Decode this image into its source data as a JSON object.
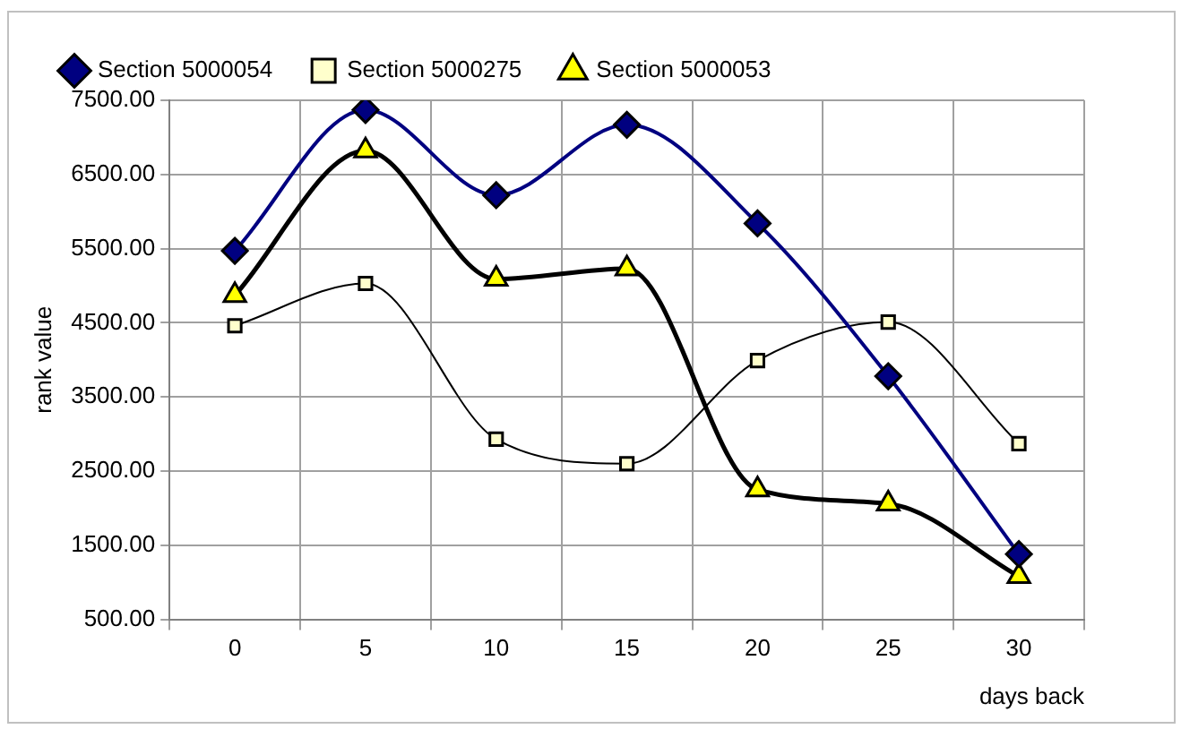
{
  "chart_data": {
    "type": "line",
    "xlabel": "days back",
    "ylabel": "rank value",
    "categories": [
      "0",
      "5",
      "10",
      "15",
      "20",
      "25",
      "30"
    ],
    "series": [
      {
        "name": "Section 5000054",
        "color": "#000080",
        "marker": "diamond",
        "values": [
          5470,
          7370,
          6220,
          7170,
          5840,
          3780,
          1380
        ]
      },
      {
        "name": "Section 5000275",
        "color": "#ffffcc",
        "marker": "square",
        "values": [
          4460,
          5030,
          2930,
          2600,
          3990,
          4510,
          2870
        ]
      },
      {
        "name": "Section 5000053",
        "color": "#ffff00",
        "marker": "triangle",
        "values": [
          4870,
          6820,
          5090,
          5230,
          2250,
          2060,
          1080
        ]
      }
    ],
    "ylim": [
      500,
      7500
    ],
    "yticks": [
      {
        "value": 500,
        "label": "500.00"
      },
      {
        "value": 1500,
        "label": "1500.00"
      },
      {
        "value": 2500,
        "label": "2500.00"
      },
      {
        "value": 3500,
        "label": "3500.00"
      },
      {
        "value": 4500,
        "label": "4500.00"
      },
      {
        "value": 5500,
        "label": "5500.00"
      },
      {
        "value": 6500,
        "label": "6500.00"
      },
      {
        "value": 7500,
        "label": "7500.00"
      }
    ],
    "grid": true,
    "legend": "top"
  }
}
